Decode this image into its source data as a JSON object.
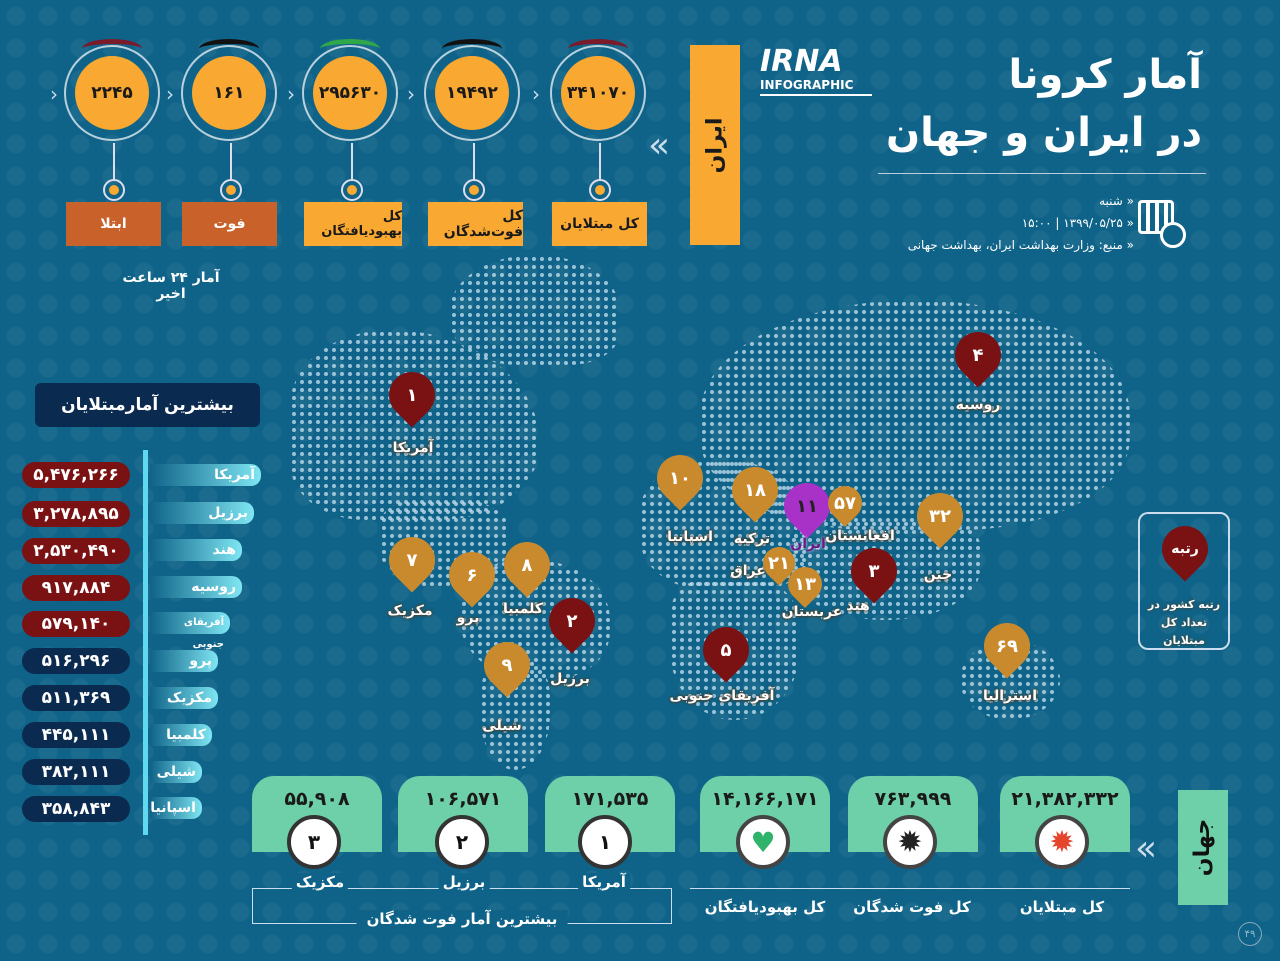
{
  "header": {
    "title_line1": "آمار کرونا",
    "title_line2": "در ایران و جهان",
    "logo": "IRNA",
    "logo_sub": "INFOGRAPHIC",
    "day": "شنبه",
    "date_time": "۱۳۹۹/۰۵/۲۵ | ۱۵:۰۰",
    "source": "منبع: وزارت بهداشت ایران، بهداشت جهانی",
    "icon": "calendar-clock-icon"
  },
  "iran": {
    "label": "ایران",
    "stats": [
      {
        "value": "۳۴۱۰۷۰",
        "label": "کل مبتلایان",
        "arc": "#7a1a2a"
      },
      {
        "value": "۱۹۴۹۲",
        "label": "کل فوت‌شدگان",
        "arc": "#111111"
      },
      {
        "value": "۲۹۵۶۳۰",
        "label": "کل بهبودیافتگان",
        "arc": "#2fa84a"
      },
      {
        "value": "۱۶۱",
        "label": "فوت",
        "arc": "#111111"
      },
      {
        "value": "۲۲۴۵",
        "label": "ابتلا",
        "arc": "#7a1a2a"
      }
    ],
    "last24": "آمار ۲۴ ساعت اخیر"
  },
  "top_cases": {
    "title": "بیشترین آمارمبتلایان",
    "rows": [
      {
        "country": "آمریکا",
        "value": "۵,۴۷۶,۲۶۶"
      },
      {
        "country": "برزیل",
        "value": "۳,۲۷۸,۸۹۵"
      },
      {
        "country": "هند",
        "value": "۲,۵۳۰,۴۹۰"
      },
      {
        "country": "روسیه",
        "value": "۹۱۷,۸۸۴"
      },
      {
        "country": "آفریقای جنوبی",
        "value": "۵۷۹,۱۴۰"
      },
      {
        "country": "پرو",
        "value": "۵۱۶,۲۹۶"
      },
      {
        "country": "مکزیک",
        "value": "۵۱۱,۳۶۹"
      },
      {
        "country": "کلمبیا",
        "value": "۴۴۵,۱۱۱"
      },
      {
        "country": "شیلی",
        "value": "۳۸۲,۱۱۱"
      },
      {
        "country": "اسپانیا",
        "value": "۳۵۸,۸۴۳"
      }
    ]
  },
  "map_pins": [
    {
      "rank": "۱",
      "country": "آمریکا"
    },
    {
      "rank": "۴",
      "country": "روسیه"
    },
    {
      "rank": "۷",
      "country": "مکزیک"
    },
    {
      "rank": "۶",
      "country": "پرو"
    },
    {
      "rank": "۸",
      "country": "کلمبیا"
    },
    {
      "rank": "۲",
      "country": "برزیل"
    },
    {
      "rank": "۹",
      "country": "شیلی"
    },
    {
      "rank": "۱۰",
      "country": "اسپانیا"
    },
    {
      "rank": "۱۸",
      "country": "ترکیه"
    },
    {
      "rank": "۱۱",
      "country": "ایران"
    },
    {
      "rank": "۵۷",
      "country": "افغانستان"
    },
    {
      "rank": "۲۱",
      "country": "عراق"
    },
    {
      "rank": "۱۳",
      "country": "عربستان"
    },
    {
      "rank": "۳",
      "country": "هند"
    },
    {
      "rank": "۳۲",
      "country": "چین"
    },
    {
      "rank": "۵",
      "country": "آفریقای جنوبی"
    },
    {
      "rank": "۶۹",
      "country": "استرالیا"
    }
  ],
  "legend": {
    "pin": "رتبه",
    "text": "رتبه کشور در تعداد کل مبتلایان"
  },
  "colors": {
    "top5": "#7a1214",
    "other": "#c98a2e",
    "iran": "#a832c8",
    "bg": "#0f6388"
  },
  "world": {
    "label": "جهان",
    "stats": [
      {
        "value": "۲۱,۳۸۲,۳۳۲",
        "label": "کل مبتلایان",
        "icon": "virus-red-icon"
      },
      {
        "value": "۷۶۳,۹۹۹",
        "label": "کل فوت شدگان",
        "icon": "virus-black-icon"
      },
      {
        "value": "۱۴,۱۶۶,۱۷۱",
        "label": "کل بهبودیافتگان",
        "icon": "heart-pulse-icon"
      }
    ]
  },
  "top_deaths": {
    "title": "بیشترین آمار فوت شدگان",
    "rows": [
      {
        "rank": "۱",
        "country": "آمریکا",
        "value": "۱۷۱,۵۳۵"
      },
      {
        "rank": "۲",
        "country": "برزیل",
        "value": "۱۰۶,۵۷۱"
      },
      {
        "rank": "۳",
        "country": "مکزیک",
        "value": "۵۵,۹۰۸"
      }
    ]
  },
  "page_number": "۴۹"
}
